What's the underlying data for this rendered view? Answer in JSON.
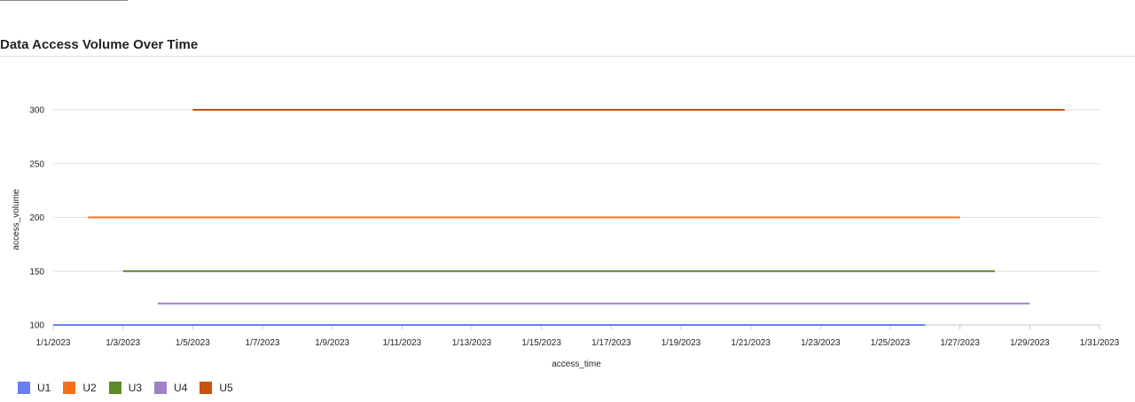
{
  "page": {
    "title": "Data Access Volume Over Time"
  },
  "chart_data": {
    "type": "line",
    "title": "Data Access Volume Over Time",
    "xlabel": "access_time",
    "ylabel": "access_volume",
    "x_ticks": [
      "1/1/2023",
      "1/3/2023",
      "1/5/2023",
      "1/7/2023",
      "1/9/2023",
      "1/11/2023",
      "1/13/2023",
      "1/15/2023",
      "1/17/2023",
      "1/19/2023",
      "1/21/2023",
      "1/23/2023",
      "1/25/2023",
      "1/27/2023",
      "1/29/2023",
      "1/31/2023"
    ],
    "y_ticks": [
      100,
      150,
      200,
      250,
      300
    ],
    "xlim": [
      "2023-01-01",
      "2023-01-31"
    ],
    "ylim": [
      100,
      300
    ],
    "grid": true,
    "legend_position": "bottom-left",
    "series": [
      {
        "name": "U1",
        "color": "#6b7ff2",
        "points": [
          {
            "x": "2023-01-01",
            "y": 100
          },
          {
            "x": "2023-01-26",
            "y": 100
          }
        ]
      },
      {
        "name": "U2",
        "color": "#f7711c",
        "points": [
          {
            "x": "2023-01-02",
            "y": 200
          },
          {
            "x": "2023-01-27",
            "y": 200
          }
        ]
      },
      {
        "name": "U3",
        "color": "#5c8a28",
        "points": [
          {
            "x": "2023-01-03",
            "y": 150
          },
          {
            "x": "2023-01-28",
            "y": 150
          }
        ]
      },
      {
        "name": "U4",
        "color": "#a081c8",
        "points": [
          {
            "x": "2023-01-04",
            "y": 120
          },
          {
            "x": "2023-01-29",
            "y": 120
          }
        ]
      },
      {
        "name": "U5",
        "color": "#c9520e",
        "points": [
          {
            "x": "2023-01-05",
            "y": 300
          },
          {
            "x": "2023-01-30",
            "y": 300
          }
        ]
      }
    ]
  }
}
